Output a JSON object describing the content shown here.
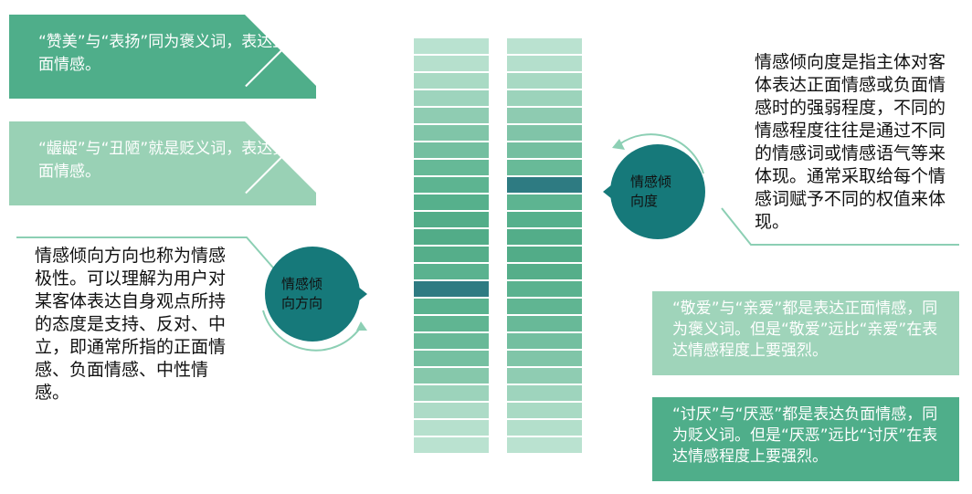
{
  "boxes": {
    "zanmei": "“赞美”与“表扬”同为褒义词，表达正面情感。",
    "wochuo": "“龌龊”与“丑陋”就是贬义词，表达负面情感。",
    "jingai": "“敬爱”与“亲爱”都是表达正面情感，同为褒义词。但是“敬爱”远比“亲爱”在表达情感程度上要强烈。",
    "taoyan": "“讨厌”与“厌恶”都是表达负面情感，同为贬义词。但是“厌恶”远比“讨厌”在表达情感程度上要强烈。"
  },
  "left_text": "情感倾向方向也称为情感极性。可以理解为用户对某客体表达自身观点所持的态度是支持、反对、中立，即通常所指的正面情感、负面情感、中性情感。",
  "right_text": "情感倾向度是指主体对客体表达正面情感或负面情感时的强弱程度，不同的情感程度往往是通过不同的情感词或情感语气等来体现。通常采取给每个情感词赋予不同的权值来体现。",
  "circles": {
    "left_line1": "情感倾",
    "left_line2": "向方向",
    "right_line1": "情感倾",
    "right_line2": "向度"
  },
  "colors": {
    "dark_green": "#4fae8a",
    "light_green": "#99d1b5",
    "teal": "#16797a",
    "highlight": "#2a7b80"
  },
  "columns": {
    "left": [
      "#b9e2d0",
      "#b6e0cd",
      "#a9dac4",
      "#9ed4bd",
      "#8fccb2",
      "#80c5a8",
      "#73bfa0",
      "#66b997",
      "#5db491",
      "#56b08c",
      "#53ad89",
      "#52ac88",
      "#55ae8a",
      "#5ab28f",
      "#2e7b82",
      "#5ab28f",
      "#60b592",
      "#68b998",
      "#75c0a1",
      "#86c8ab",
      "#9cd3bb",
      "#addbc7",
      "#b6e0cd",
      "#bae2d0"
    ],
    "right": [
      "#bae2d0",
      "#b4dfcc",
      "#a8d9c3",
      "#9cd3bb",
      "#8ecbb1",
      "#80c4a8",
      "#74bfa0",
      "#68ba98",
      "#2e7b82",
      "#5db491",
      "#56b08c",
      "#53ad89",
      "#52ac88",
      "#55ae8a",
      "#5ab28f",
      "#60b592",
      "#68b998",
      "#73bfa0",
      "#80c5a8",
      "#8fccb2",
      "#9ed4bd",
      "#a9dac4",
      "#b3dfcb",
      "#bae2d0"
    ]
  }
}
